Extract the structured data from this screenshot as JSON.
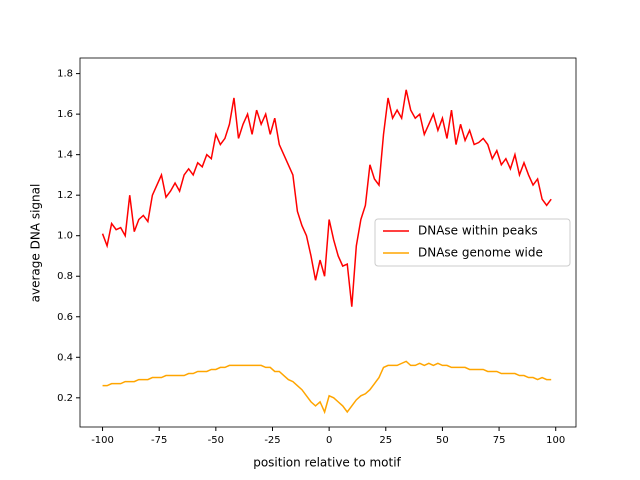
{
  "chart_data": {
    "type": "line",
    "xlabel": "position relative to motif",
    "ylabel": "average DNA signal",
    "x": [
      -100,
      -98,
      -96,
      -94,
      -92,
      -90,
      -88,
      -86,
      -84,
      -82,
      -80,
      -78,
      -76,
      -74,
      -72,
      -70,
      -68,
      -66,
      -64,
      -62,
      -60,
      -58,
      -56,
      -54,
      -52,
      -50,
      -48,
      -46,
      -44,
      -42,
      -40,
      -38,
      -36,
      -34,
      -32,
      -30,
      -28,
      -26,
      -24,
      -22,
      -20,
      -18,
      -16,
      -14,
      -12,
      -10,
      -8,
      -6,
      -4,
      -2,
      0,
      2,
      4,
      6,
      8,
      10,
      12,
      14,
      16,
      18,
      20,
      22,
      24,
      26,
      28,
      30,
      32,
      34,
      36,
      38,
      40,
      42,
      44,
      46,
      48,
      50,
      52,
      54,
      56,
      58,
      60,
      62,
      64,
      66,
      68,
      70,
      72,
      74,
      76,
      78,
      80,
      82,
      84,
      86,
      88,
      90,
      92,
      94,
      96,
      98
    ],
    "series": [
      {
        "name": "DNAse within peaks",
        "color": "#ff0000",
        "values": [
          1.01,
          0.95,
          1.06,
          1.03,
          1.04,
          1.0,
          1.2,
          1.02,
          1.08,
          1.1,
          1.07,
          1.2,
          1.25,
          1.3,
          1.19,
          1.22,
          1.26,
          1.22,
          1.3,
          1.33,
          1.3,
          1.36,
          1.34,
          1.4,
          1.38,
          1.5,
          1.45,
          1.48,
          1.55,
          1.68,
          1.48,
          1.55,
          1.6,
          1.5,
          1.62,
          1.55,
          1.6,
          1.5,
          1.58,
          1.45,
          1.4,
          1.35,
          1.3,
          1.12,
          1.05,
          1.0,
          0.9,
          0.78,
          0.88,
          0.8,
          1.08,
          0.98,
          0.9,
          0.85,
          0.86,
          0.65,
          0.95,
          1.08,
          1.15,
          1.35,
          1.28,
          1.25,
          1.5,
          1.68,
          1.58,
          1.62,
          1.58,
          1.72,
          1.62,
          1.58,
          1.6,
          1.5,
          1.55,
          1.6,
          1.52,
          1.58,
          1.48,
          1.62,
          1.45,
          1.55,
          1.47,
          1.52,
          1.45,
          1.46,
          1.48,
          1.45,
          1.38,
          1.42,
          1.35,
          1.38,
          1.33,
          1.4,
          1.3,
          1.36,
          1.3,
          1.25,
          1.28,
          1.18,
          1.15,
          1.18
        ]
      },
      {
        "name": "DNAse genome wide",
        "color": "#ffa500",
        "values": [
          0.26,
          0.26,
          0.27,
          0.27,
          0.27,
          0.28,
          0.28,
          0.28,
          0.29,
          0.29,
          0.29,
          0.3,
          0.3,
          0.3,
          0.31,
          0.31,
          0.31,
          0.31,
          0.31,
          0.32,
          0.32,
          0.33,
          0.33,
          0.33,
          0.34,
          0.34,
          0.35,
          0.35,
          0.36,
          0.36,
          0.36,
          0.36,
          0.36,
          0.36,
          0.36,
          0.36,
          0.35,
          0.35,
          0.33,
          0.33,
          0.31,
          0.29,
          0.28,
          0.26,
          0.24,
          0.21,
          0.18,
          0.16,
          0.18,
          0.13,
          0.21,
          0.2,
          0.18,
          0.16,
          0.13,
          0.16,
          0.19,
          0.21,
          0.22,
          0.24,
          0.27,
          0.3,
          0.35,
          0.36,
          0.36,
          0.36,
          0.37,
          0.38,
          0.36,
          0.36,
          0.37,
          0.36,
          0.37,
          0.36,
          0.37,
          0.36,
          0.36,
          0.35,
          0.35,
          0.35,
          0.35,
          0.34,
          0.34,
          0.34,
          0.34,
          0.33,
          0.33,
          0.33,
          0.32,
          0.32,
          0.32,
          0.32,
          0.31,
          0.31,
          0.3,
          0.3,
          0.29,
          0.3,
          0.29,
          0.29
        ]
      }
    ],
    "xlim": [
      -109.95,
      108.95
    ],
    "xticks": [
      -100,
      -75,
      -50,
      -25,
      0,
      25,
      50,
      75,
      100
    ],
    "ylim": [
      0.056,
      1.877
    ],
    "yticks": [
      0.2,
      0.4,
      0.6,
      0.8,
      {
        "value": 1,
        "label": "1.0"
      },
      1.2,
      1.4,
      1.6,
      1.8
    ],
    "legend": "center right",
    "grid": false
  }
}
